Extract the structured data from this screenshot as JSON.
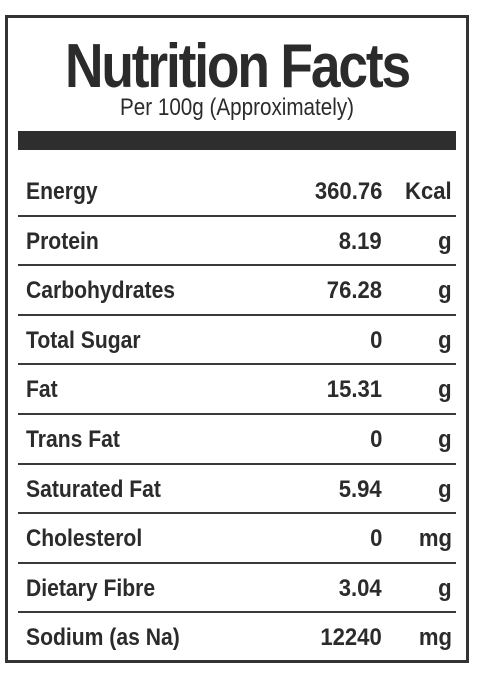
{
  "label": {
    "title": "Nutrition Facts",
    "subtitle": "Per 100g (Approximately)",
    "rows": [
      {
        "nutrient": "Energy",
        "value": "360.76",
        "unit": "Kcal"
      },
      {
        "nutrient": "Protein",
        "value": "8.19",
        "unit": "g"
      },
      {
        "nutrient": "Carbohydrates",
        "value": "76.28",
        "unit": "g"
      },
      {
        "nutrient": "Total Sugar",
        "value": "0",
        "unit": "g"
      },
      {
        "nutrient": "Fat",
        "value": "15.31",
        "unit": "g"
      },
      {
        "nutrient": "Trans Fat",
        "value": "0",
        "unit": "g"
      },
      {
        "nutrient": "Saturated Fat",
        "value": "5.94",
        "unit": "g"
      },
      {
        "nutrient": "Cholesterol",
        "value": "0",
        "unit": "mg"
      },
      {
        "nutrient": "Dietary Fibre",
        "value": "3.04",
        "unit": "g"
      },
      {
        "nutrient": "Sodium (as Na)",
        "value": "12240",
        "unit": "mg"
      }
    ]
  },
  "colors": {
    "text": "#2b2b2b",
    "border": "#333333",
    "bar": "#2e2e2e",
    "background": "#ffffff"
  }
}
